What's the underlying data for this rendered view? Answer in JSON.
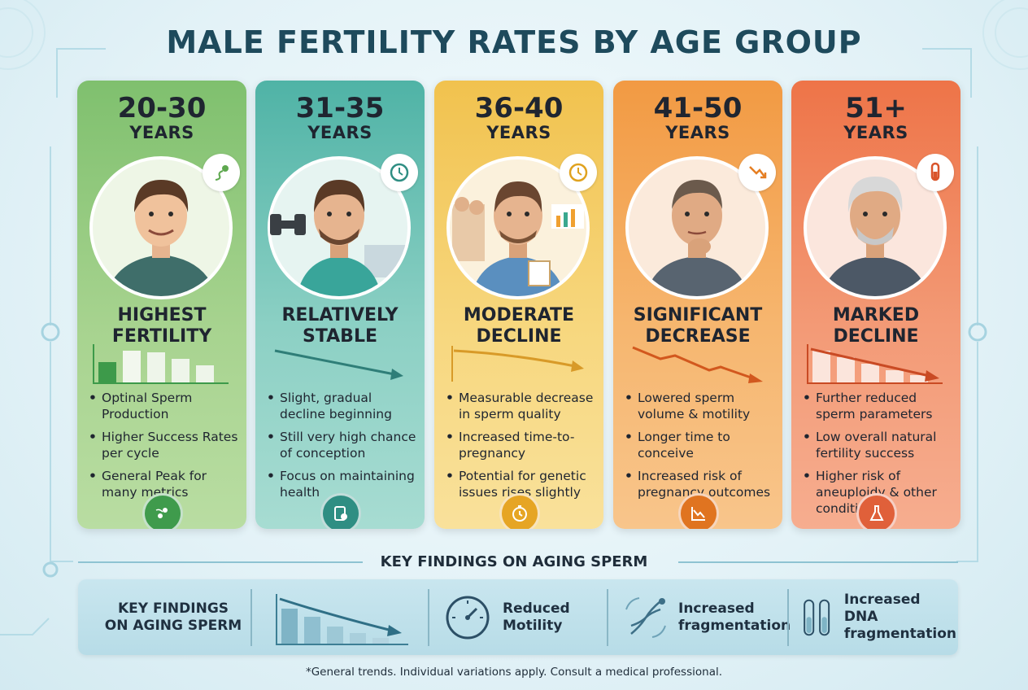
{
  "title": "MALE FERTILITY RATES BY AGE GROUP",
  "cards": [
    {
      "age": "20-30",
      "years": "YEARS",
      "status": [
        "HIGHEST",
        "FERTILITY"
      ],
      "bullets": [
        "Optinal Sperm Production",
        "Higher Success Rates per cycle",
        "General Peak for many metrics"
      ],
      "color": "#5ea84f",
      "badge_icon": "sperm-icon",
      "foot_icon": "sperm-pair-icon"
    },
    {
      "age": "31-35",
      "years": "YEARS",
      "status": [
        "RELATIVELY",
        "STABLE"
      ],
      "bullets": [
        "Slight, gradual decline beginning",
        "Still very high chance of conception",
        "Focus on maintaining health"
      ],
      "color": "#2f8e83",
      "badge_icon": "clock-icon",
      "foot_icon": "health-tablet-icon"
    },
    {
      "age": "36-40",
      "years": "YEARS",
      "status": [
        "MODERATE",
        "DECLINE"
      ],
      "bullets": [
        "Measurable decrease in sperm quality",
        "Increased time-to-pregnancy",
        "Potential for genetic issues rises slightly"
      ],
      "color": "#e0a21f",
      "badge_icon": "clock-icon",
      "foot_icon": "stopwatch-icon"
    },
    {
      "age": "41-50",
      "years": "YEARS",
      "status": [
        "SIGNIFICANT",
        "DECREASE"
      ],
      "bullets": [
        "Lowered sperm volume & motility",
        "Longer time to conceive",
        "Increased risk of pregnancy outcomes"
      ],
      "color": "#e57e22",
      "badge_icon": "trend-down-icon",
      "foot_icon": "chart-down-icon"
    },
    {
      "age": "51+",
      "years": "YEARS",
      "status": [
        "MARKED",
        "DECLINE"
      ],
      "bullets": [
        "Further reduced sperm parameters",
        "Low overall natural fertility success",
        "Higher risk of aneuploidy & other conditions"
      ],
      "color": "#d9552c",
      "badge_icon": "test-tube-icon",
      "foot_icon": "dna-flask-icon"
    }
  ],
  "key_findings": {
    "heading": "KEY FINDINGS ON AGING SPERM",
    "panel_label": [
      "KEY FINDINGS",
      "ON AGING SPERM"
    ],
    "items": [
      {
        "text": [
          "Reduced",
          "Motility"
        ],
        "icon": "gauge-icon"
      },
      {
        "text": [
          "Increased",
          "fragmentation"
        ],
        "icon": "dna-cycle-icon"
      },
      {
        "text": [
          "Increased DNA",
          "fragmentation"
        ],
        "icon": "test-tubes-icon"
      }
    ]
  },
  "footnote": "*General trends. Individual variations apply. Consult a medical professional."
}
